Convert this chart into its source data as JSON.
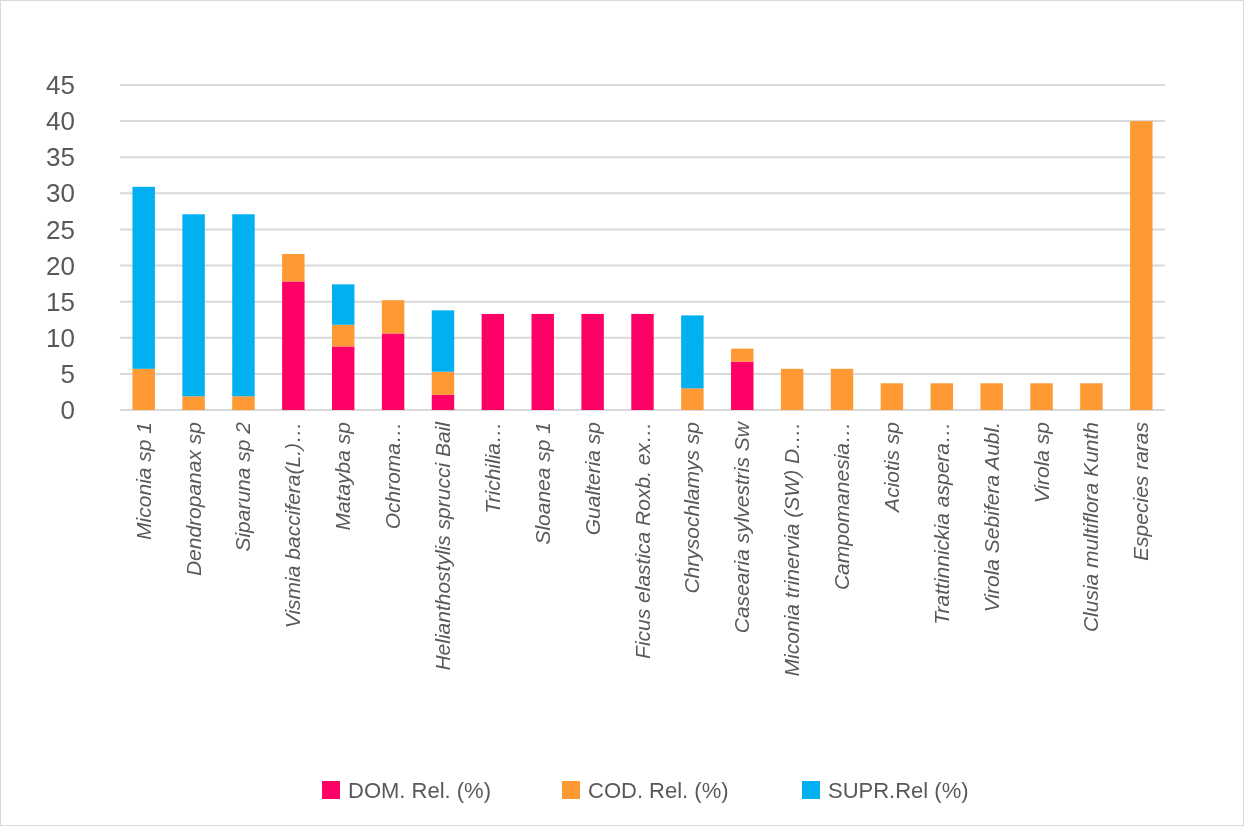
{
  "chart_data": {
    "type": "bar",
    "stacked": true,
    "categories": [
      "Miconia sp 1",
      "Dendropanax sp",
      "Siparuna sp 2",
      "Vismia baccifera(L.)…",
      "Matayba sp",
      "Ochroma…",
      "Helianthostylis sprucci Bail",
      "Trichilia…",
      "Sloanea sp 1",
      "Gualteria sp",
      "Ficus elastica Roxb. ex…",
      "Chrysochlamys sp",
      "Casearia sylvestris Sw",
      "Miconia trinervia (SW) D.…",
      "Campomanesia…",
      "Aciotis sp",
      "Trattinnickia aspera…",
      "Virola Sebifera Aubl.",
      "Virola sp",
      "Clusia multiflora Kunth",
      "Especies raras"
    ],
    "series": [
      {
        "name": "DOM. Rel. (%)",
        "color": "#ff0066",
        "values": [
          null,
          null,
          null,
          17.8,
          8.8,
          10.6,
          2.1,
          13.3,
          13.3,
          13.3,
          13.3,
          null,
          6.7,
          null,
          null,
          null,
          null,
          null,
          null,
          null,
          null
        ]
      },
      {
        "name": "COD. Rel. (%)",
        "color": "#ff9933",
        "values": [
          5.7,
          1.9,
          1.9,
          3.8,
          3.0,
          4.6,
          3.2,
          null,
          null,
          null,
          null,
          3.0,
          1.8,
          5.7,
          5.7,
          3.7,
          3.7,
          3.7,
          3.7,
          3.7,
          40
        ]
      },
      {
        "name": "SUPR.Rel (%)",
        "color": "#00b0f0",
        "values": [
          25.2,
          25.2,
          25.2,
          null,
          5.6,
          null,
          8.5,
          null,
          null,
          null,
          null,
          10.1,
          null,
          null,
          null,
          null,
          null,
          null,
          null,
          null,
          null
        ]
      }
    ],
    "ylim": [
      0,
      45
    ],
    "yticks": [
      0,
      5,
      10,
      15,
      20,
      25,
      30,
      35,
      40,
      45
    ],
    "grid": "y",
    "legend": "bottom"
  }
}
